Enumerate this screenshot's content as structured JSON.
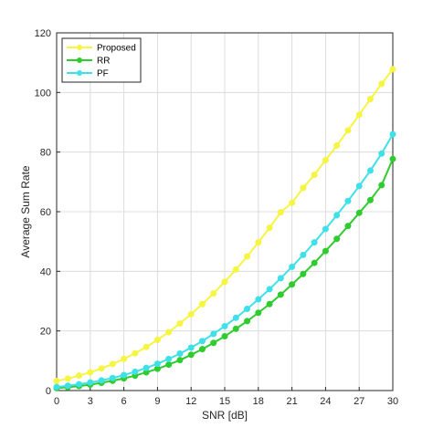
{
  "chart_data": {
    "type": "line",
    "xlabel": "SNR [dB]",
    "ylabel": "Average Sum Rate",
    "xlim": [
      0,
      30
    ],
    "ylim": [
      0,
      120
    ],
    "xticks": [
      0,
      3,
      6,
      9,
      12,
      15,
      18,
      21,
      24,
      27,
      30
    ],
    "yticks": [
      0,
      20,
      40,
      60,
      80,
      100,
      120
    ],
    "grid": true,
    "legend_position": "top-left",
    "x": [
      0,
      1,
      2,
      3,
      4,
      5,
      6,
      7,
      8,
      9,
      10,
      11,
      12,
      13,
      14,
      15,
      16,
      17,
      18,
      19,
      20,
      21,
      22,
      23,
      24,
      25,
      26,
      27,
      28,
      29,
      30
    ],
    "series": [
      {
        "name": "Proposed",
        "color": "#f5f542",
        "values": [
          3.2,
          4.0,
          5.0,
          6.1,
          7.4,
          8.9,
          10.6,
          12.5,
          14.6,
          17.0,
          19.6,
          22.5,
          25.6,
          29.0,
          32.6,
          36.5,
          40.6,
          45.0,
          49.7,
          54.6,
          59.8,
          63.0,
          68.0,
          72.4,
          77.3,
          82.2,
          87.3,
          92.5,
          97.8,
          102.9,
          107.8
        ]
      },
      {
        "name": "RR",
        "color": "#2ecc2e",
        "values": [
          0.8,
          1.1,
          1.5,
          2.0,
          2.6,
          3.3,
          4.1,
          5.0,
          6.1,
          7.3,
          8.7,
          10.2,
          12.0,
          13.9,
          16.0,
          18.2,
          20.7,
          23.3,
          26.1,
          29.0,
          32.2,
          35.6,
          39.1,
          42.8,
          46.8,
          50.9,
          55.2,
          59.6,
          63.9,
          68.9,
          77.7
        ]
      },
      {
        "name": "PF",
        "color": "#3fe0e8",
        "values": [
          1.2,
          1.6,
          2.1,
          2.7,
          3.4,
          4.2,
          5.2,
          6.3,
          7.6,
          9.0,
          10.6,
          12.4,
          14.4,
          16.6,
          19.0,
          21.6,
          24.4,
          27.4,
          30.6,
          34.0,
          37.7,
          41.5,
          45.5,
          49.7,
          54.2,
          58.8,
          63.6,
          68.6,
          73.8,
          79.5,
          86.0
        ]
      }
    ]
  }
}
